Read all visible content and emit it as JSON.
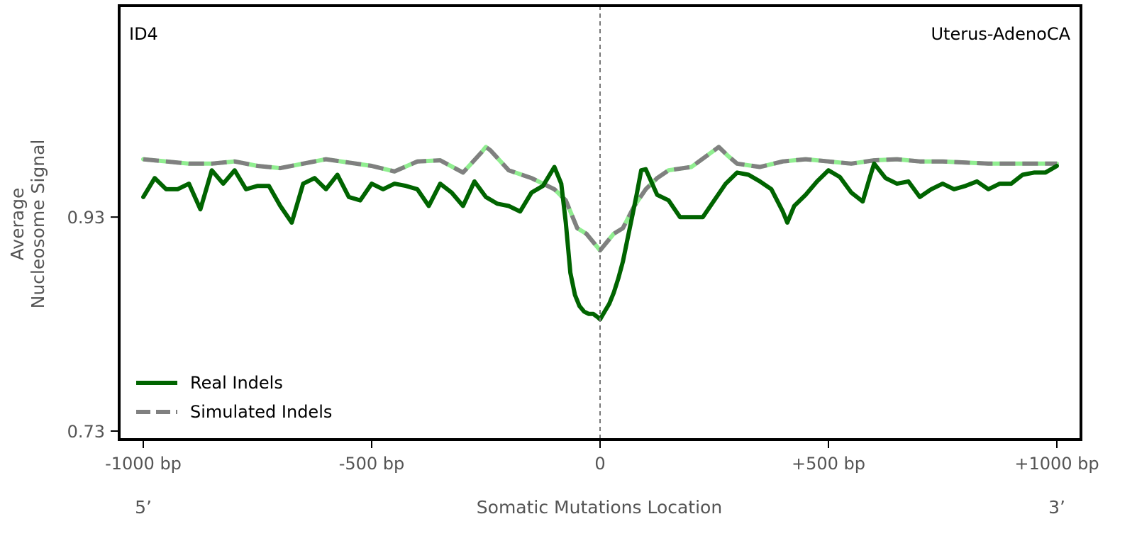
{
  "chart_data": {
    "type": "line",
    "signature_label": "ID4",
    "cancer_type": "Uterus-AdenoCA",
    "xlabel": "Somatic Mutations Location",
    "ylabel_line1": "Average",
    "ylabel_line2": "Nucleosome Signal",
    "five_prime": "5’",
    "three_prime": "3’",
    "xlim": [
      -1000,
      1000
    ],
    "ylim": [
      0.73,
      1.12
    ],
    "x_ticks": [
      -1000,
      -500,
      0,
      500,
      1000
    ],
    "x_tick_labels": [
      "-1000 bp",
      "-500 bp",
      "0",
      "+500 bp",
      "+1000 bp"
    ],
    "y_ticks": [
      0.73,
      0.93
    ],
    "y_tick_labels": [
      "0.73",
      "0.93"
    ],
    "reference_line_x": 0,
    "legend_position": "bottom-left",
    "series": [
      {
        "name": "Real Indels",
        "color": "#006400",
        "style": "solid",
        "x": [
          -1000,
          -975,
          -950,
          -925,
          -900,
          -875,
          -850,
          -825,
          -800,
          -775,
          -750,
          -725,
          -700,
          -675,
          -650,
          -625,
          -600,
          -575,
          -550,
          -525,
          -500,
          -475,
          -450,
          -425,
          -400,
          -375,
          -350,
          -325,
          -300,
          -275,
          -250,
          -225,
          -200,
          -175,
          -150,
          -125,
          -100,
          -85,
          -75,
          -65,
          -55,
          -45,
          -35,
          -25,
          -15,
          -5,
          0,
          10,
          20,
          30,
          40,
          50,
          60,
          70,
          80,
          90,
          100,
          125,
          150,
          175,
          200,
          225,
          250,
          275,
          300,
          325,
          350,
          375,
          400,
          410,
          425,
          450,
          475,
          500,
          525,
          550,
          575,
          590,
          600,
          625,
          650,
          675,
          700,
          725,
          750,
          775,
          800,
          825,
          850,
          875,
          900,
          925,
          950,
          975,
          1000
        ],
        "y": [
          0.948,
          0.965,
          0.955,
          0.955,
          0.96,
          0.937,
          0.972,
          0.96,
          0.972,
          0.955,
          0.958,
          0.958,
          0.94,
          0.925,
          0.96,
          0.965,
          0.955,
          0.968,
          0.948,
          0.945,
          0.96,
          0.955,
          0.96,
          0.958,
          0.955,
          0.94,
          0.96,
          0.952,
          0.94,
          0.962,
          0.948,
          0.942,
          0.94,
          0.935,
          0.952,
          0.958,
          0.975,
          0.96,
          0.925,
          0.88,
          0.86,
          0.85,
          0.845,
          0.843,
          0.843,
          0.84,
          0.838,
          0.845,
          0.852,
          0.862,
          0.875,
          0.89,
          0.91,
          0.93,
          0.95,
          0.972,
          0.973,
          0.95,
          0.945,
          0.93,
          0.93,
          0.93,
          0.945,
          0.96,
          0.97,
          0.968,
          0.962,
          0.955,
          0.935,
          0.925,
          0.94,
          0.95,
          0.962,
          0.972,
          0.966,
          0.952,
          0.944,
          0.965,
          0.978,
          0.965,
          0.96,
          0.962,
          0.948,
          0.955,
          0.96,
          0.955,
          0.958,
          0.962,
          0.955,
          0.96,
          0.96,
          0.968,
          0.97,
          0.97,
          0.976
        ]
      },
      {
        "name": "Simulated Indels",
        "color": "#808080",
        "style": "dashed",
        "x": [
          -1000,
          -950,
          -900,
          -850,
          -800,
          -750,
          -700,
          -650,
          -600,
          -550,
          -500,
          -450,
          -400,
          -350,
          -300,
          -260,
          -250,
          -240,
          -200,
          -150,
          -100,
          -75,
          -50,
          -30,
          -10,
          0,
          10,
          30,
          50,
          75,
          100,
          125,
          150,
          200,
          250,
          260,
          280,
          300,
          350,
          400,
          450,
          500,
          550,
          600,
          650,
          700,
          750,
          800,
          850,
          900,
          950,
          1000
        ],
        "y": [
          0.982,
          0.98,
          0.978,
          0.978,
          0.98,
          0.976,
          0.974,
          0.978,
          0.982,
          0.979,
          0.976,
          0.971,
          0.98,
          0.981,
          0.97,
          0.988,
          0.993,
          0.99,
          0.972,
          0.965,
          0.955,
          0.945,
          0.92,
          0.915,
          0.905,
          0.9,
          0.905,
          0.915,
          0.92,
          0.94,
          0.955,
          0.965,
          0.972,
          0.975,
          0.99,
          0.993,
          0.985,
          0.978,
          0.975,
          0.98,
          0.982,
          0.98,
          0.978,
          0.981,
          0.982,
          0.98,
          0.98,
          0.979,
          0.978,
          0.978,
          0.978,
          0.978
        ]
      }
    ]
  }
}
